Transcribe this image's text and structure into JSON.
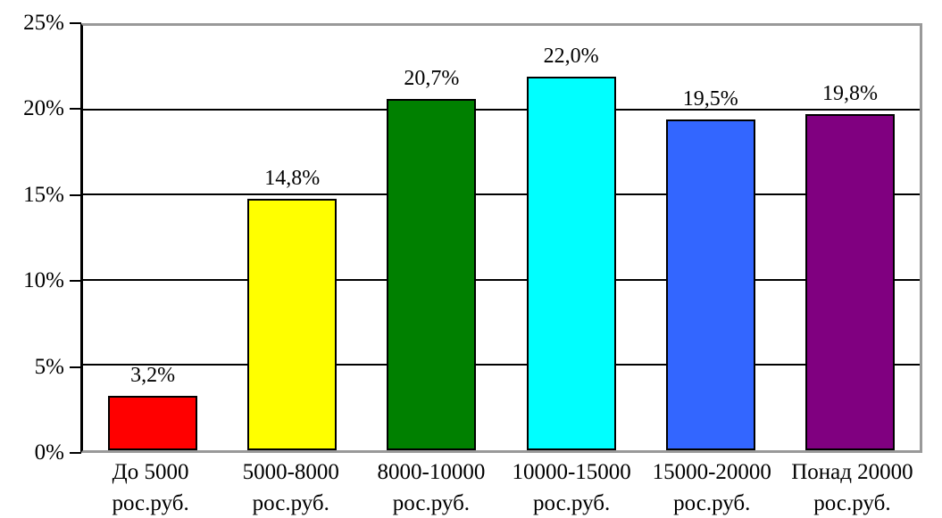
{
  "chart_data": {
    "type": "bar",
    "title": "",
    "xlabel": "",
    "ylabel": "",
    "categories": [
      "До 5000 рос.руб.",
      "5000-8000 рос.руб.",
      "8000-10000 рос.руб.",
      "10000-15000 рос.руб.",
      "15000-20000 рос.руб.",
      "Понад 20000 рос.руб."
    ],
    "category_label_lines": [
      [
        "До 5000",
        "рос.руб."
      ],
      [
        "5000-8000",
        "рос.руб."
      ],
      [
        "8000-10000",
        "рос.руб."
      ],
      [
        "10000-15000",
        "рос.руб."
      ],
      [
        "15000-20000",
        "рос.руб."
      ],
      [
        "Понад 20000",
        "рос.руб."
      ]
    ],
    "values": [
      3.2,
      14.8,
      20.7,
      22.0,
      19.5,
      19.8
    ],
    "value_labels": [
      "3,2%",
      "14,8%",
      "20,7%",
      "22,0%",
      "19,5%",
      "19,8%"
    ],
    "bar_colors": [
      "#ff0000",
      "#ffff00",
      "#008000",
      "#00ffff",
      "#3366ff",
      "#800080"
    ],
    "ylim": [
      0,
      25
    ],
    "yticks": [
      {
        "value": 0,
        "label": "0%"
      },
      {
        "value": 5,
        "label": "5%"
      },
      {
        "value": 10,
        "label": "10%"
      },
      {
        "value": 15,
        "label": "15%"
      },
      {
        "value": 20,
        "label": "20%"
      },
      {
        "value": 25,
        "label": "25%"
      }
    ],
    "grid": true,
    "legend_position": "none",
    "colors": {
      "background": "#ffffff",
      "plot_border": "#999999",
      "axis": "#000000",
      "grid": "#000000",
      "bar_border": "#000000",
      "text": "#000000"
    }
  }
}
